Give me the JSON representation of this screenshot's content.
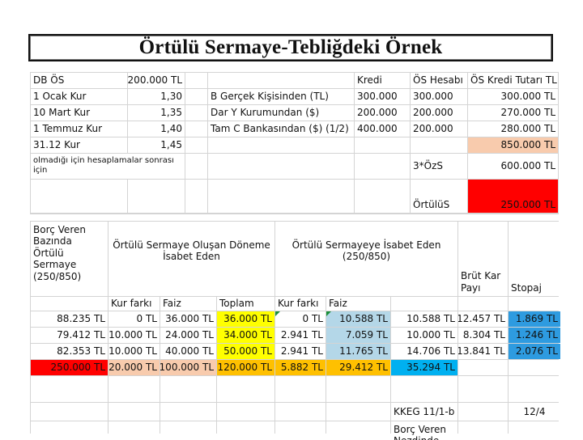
{
  "title": "Örtülü Sermaye-Tebliğdeki Örnek",
  "top_table": {
    "r1": [
      "DB ÖS",
      "200.000 TL",
      "",
      "",
      "Kredi",
      "ÖS Hesabı",
      "ÖS Kredi Tutarı TL"
    ],
    "r2": [
      "1 Ocak Kur",
      "1,30",
      "",
      "B Gerçek Kişisinden (TL)",
      "300.000",
      "300.000",
      "300.000 TL"
    ],
    "r3": [
      "10 Mart Kur",
      "1,35",
      "",
      "Dar Y Kurumundan ($)",
      "200.000",
      "200.000",
      "270.000 TL"
    ],
    "r4": [
      "1 Temmuz Kur",
      "1,40",
      "",
      "Tam C Bankasından ($) (1/2)",
      "400.000",
      "200.000",
      "280.000 TL"
    ],
    "r5": [
      "31.12 Kur",
      "1,45",
      "",
      "",
      "",
      "",
      "850.000 TL"
    ],
    "r6_note": "olmadığı için hesaplamalar sonrası için",
    "r6_label": "3*ÖzS",
    "r6_value": "600.000 TL",
    "r7_label": "ÖrtülüS",
    "r7_value": "250.000 TL"
  },
  "bottom_table": {
    "h_borc": "Borç Veren Bazında Örtülü Sermaye (250/850)",
    "h_olusan": "Örtülü Sermaye Oluşan Döneme İsabet Eden",
    "h_isabet": "Örtülü Sermayeye İsabet Eden (250/850)",
    "h_brut": "Brüt Kar Payı",
    "h_stopaj": "Stopaj",
    "sub": [
      "",
      "Kur farkı",
      "Faiz",
      "Toplam",
      "Kur farkı",
      "Faiz",
      "",
      "",
      ""
    ],
    "rows": [
      [
        "88.235 TL",
        "0 TL",
        "36.000 TL",
        "36.000 TL",
        "0 TL",
        "10.588 TL",
        "10.588 TL",
        "12.457 TL",
        "1.869 TL"
      ],
      [
        "79.412 TL",
        "10.000 TL",
        "24.000 TL",
        "34.000 TL",
        "2.941 TL",
        "7.059 TL",
        "10.000 TL",
        "8.304 TL",
        "1.246 TL"
      ],
      [
        "82.353 TL",
        "10.000 TL",
        "40.000 TL",
        "50.000 TL",
        "2.941 TL",
        "11.765 TL",
        "14.706 TL",
        "13.841 TL",
        "2.076 TL"
      ],
      [
        "250.000 TL",
        "20.000 TL",
        "100.000 TL",
        "120.000 TL",
        "5.882 TL",
        "29.412 TL",
        "35.294 TL",
        "",
        ""
      ]
    ],
    "kkeg": "KKEG 11/1-b",
    "page_ref": "12/4",
    "borc_nezdinde": "Borç Veren Nezdinde"
  },
  "colors": {
    "peach": "#f8cbad",
    "red": "#ff0000",
    "yellow": "#ffff00",
    "orange": "#ffc000",
    "light_blue": "#b4d7e8",
    "blue": "#00b0f0"
  }
}
